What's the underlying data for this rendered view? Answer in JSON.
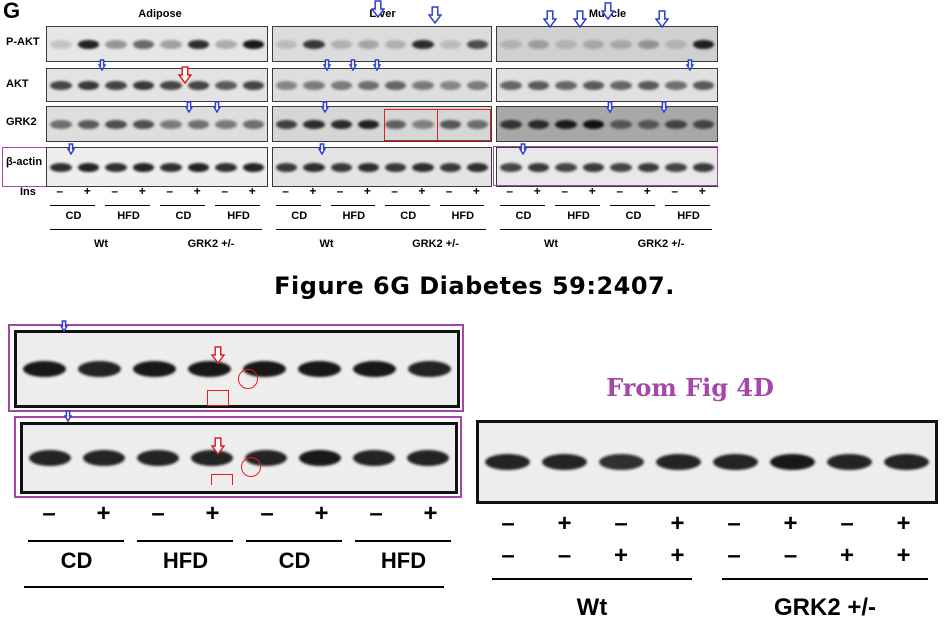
{
  "panel": {
    "letter": "G"
  },
  "tissues": [
    "Adipose",
    "Liver",
    "Muscle"
  ],
  "rows": [
    "P-AKT",
    "AKT",
    "GRK2",
    "β-actin"
  ],
  "ins_label": "Ins",
  "ins_signs": [
    "–",
    "+",
    "–",
    "+",
    "–",
    "+",
    "–",
    "+"
  ],
  "diet_groups": [
    "CD",
    "HFD",
    "CD",
    "HFD"
  ],
  "genotypes": [
    "Wt",
    "GRK2 +/-"
  ],
  "caption": "Figure 6G Diabetes 59:2407.",
  "from_fig": "From Fig 4D",
  "bottom_left": {
    "signs": [
      "–",
      "+",
      "–",
      "+",
      "–",
      "+",
      "–",
      "+"
    ],
    "groups": [
      "CD",
      "HFD",
      "CD",
      "HFD"
    ]
  },
  "bottom_right": {
    "row1": [
      "–",
      "+",
      "–",
      "+",
      "–",
      "+",
      "–",
      "+"
    ],
    "row2": [
      "–",
      "–",
      "+",
      "+",
      "–",
      "–",
      "+",
      "+"
    ],
    "genotypes": [
      "Wt",
      "GRK2 +/-"
    ]
  },
  "colors": {
    "annotation_purple": "#a546a8",
    "annotation_red": "#e02020",
    "arrow_blue": "#2a3fd0"
  },
  "icons": [
    "down-arrow-icon",
    "circle-marker-icon",
    "rectangle-marker-icon"
  ]
}
